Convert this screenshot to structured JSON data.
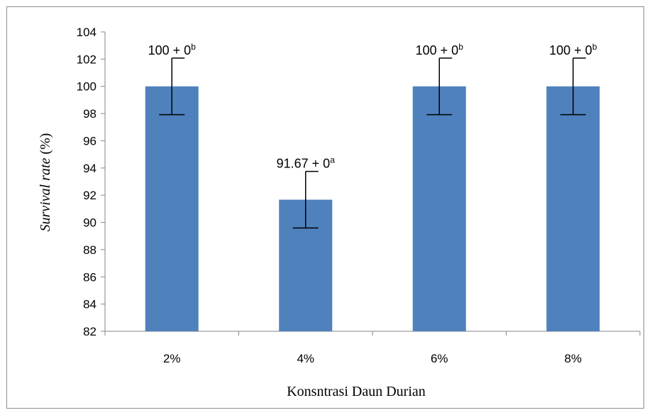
{
  "chart_data": {
    "type": "bar",
    "categories": [
      "2%",
      "4%",
      "6%",
      "8%"
    ],
    "values": [
      100,
      91.67,
      100,
      100
    ],
    "error": [
      2.08,
      2.08,
      2.08,
      2.08
    ],
    "data_labels": [
      {
        "value": "100 + 0",
        "letter": "b"
      },
      {
        "value": "91.67 + 0",
        "letter": "a"
      },
      {
        "value": "100 + 0",
        "letter": "b"
      },
      {
        "value": "100 + 0",
        "letter": "b"
      }
    ],
    "xlabel": "Konsntrasi Daun Durian",
    "ylabel_italic": "Survival rate",
    "ylabel_suffix": " (%)",
    "ylim": [
      82,
      104
    ],
    "yticks": [
      82,
      84,
      86,
      88,
      90,
      92,
      94,
      96,
      98,
      100,
      102,
      104
    ],
    "grid": false,
    "bar_color": "#4f81bd"
  }
}
